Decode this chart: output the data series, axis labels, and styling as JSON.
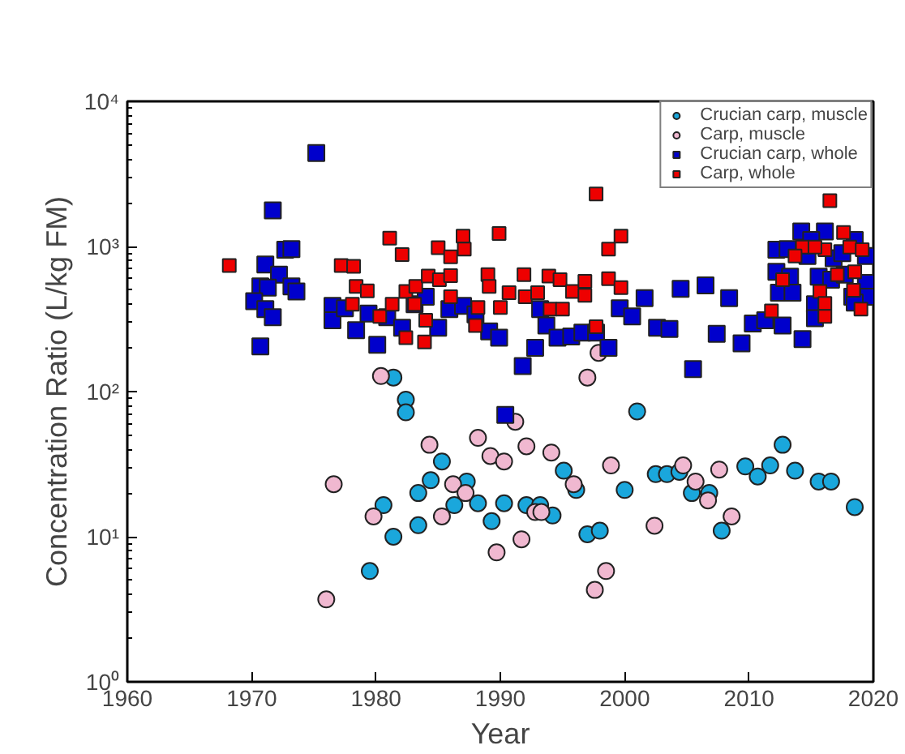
{
  "chart_data": {
    "type": "scatter",
    "xlabel": "Year",
    "ylabel": "Concentration Ratio (L/kg FM)",
    "log": "y",
    "legend": "top right",
    "xlim": [
      1960,
      2020
    ],
    "xticks": [
      1960,
      1970,
      1980,
      1990,
      2000,
      2010,
      2020
    ],
    "ylim": [
      1,
      10000
    ],
    "yticks": [
      {
        "value": 1,
        "label": "10⁰"
      },
      {
        "value": 10,
        "label": "10¹"
      },
      {
        "value": 100,
        "label": "10²"
      },
      {
        "value": 1000,
        "label": "10³"
      },
      {
        "value": 10000,
        "label": "10⁴"
      }
    ],
    "series": [
      {
        "name": "Crucian carp, muscle",
        "color": "#1aa7dc",
        "marker": "circle",
        "x": [
          1981.4,
          1982.4,
          1982.4,
          1985.3,
          1984.4,
          1987.3,
          1983.4,
          1980.6,
          1986.3,
          1988.2,
          1990.3,
          1983.4,
          1989.3,
          1981.4,
          1979.5,
          1992.1,
          1993.2,
          1994.2,
          1995.1,
          1996.1,
          1997.0,
          1998.0,
          2000.0,
          2001.0,
          2002.5,
          2003.4,
          2004.4,
          2005.4,
          2006.8,
          2007.8,
          2009.7,
          2010.7,
          2011.7,
          2012.7,
          2013.7,
          2015.6,
          2016.6,
          2018.5
        ],
        "values": [
          125,
          88,
          72,
          33,
          24.5,
          24,
          20,
          16.5,
          16.5,
          17,
          17,
          12,
          12.8,
          10,
          5.8,
          16.5,
          16.5,
          14,
          28.5,
          21,
          10.4,
          11,
          21,
          73,
          27,
          27,
          28,
          20,
          20,
          11,
          30.5,
          26,
          31,
          43,
          28.5,
          24,
          24,
          16
        ]
      },
      {
        "name": "Carp, muscle",
        "color": "#f0b8d0",
        "marker": "circle",
        "x": [
          1980.4,
          1984.3,
          1976.6,
          1988.2,
          1989.2,
          1990.3,
          1986.2,
          1987.2,
          1979.8,
          1985.3,
          1976.0,
          1989.7,
          1991.2,
          1992.1,
          1994.1,
          1995.9,
          1992.8,
          1993.3,
          1991.7,
          1998.9,
          1998.5,
          1997.6,
          2002.4,
          2004.7,
          2005.7,
          2006.7,
          2007.6,
          2008.6,
          1997.0,
          1997.9
        ],
        "values": [
          128,
          43,
          23,
          48,
          36,
          33,
          23,
          20,
          13.8,
          13.8,
          3.7,
          7.8,
          62,
          42,
          38,
          23,
          14.8,
          14.8,
          9.6,
          31,
          5.8,
          4.3,
          11.9,
          31,
          24,
          17.8,
          29,
          13.8,
          125,
          185
        ]
      },
      {
        "name": "Crucian carp, whole",
        "color": "#0000cc",
        "marker": "square",
        "x": [
          1975.2,
          1971.7,
          1972.7,
          1973.2,
          1971.1,
          1972.2,
          1970.7,
          1971.3,
          1973.2,
          1973.6,
          1970.2,
          1971.1,
          1971.7,
          1970.7,
          1976.5,
          1976.5,
          1977.5,
          1978.4,
          1979.4,
          1980.1,
          1980.9,
          1982.1,
          1983.1,
          1984.0,
          1985.0,
          1985.9,
          1987.0,
          1988.0,
          1989.1,
          1989.9,
          1990.4,
          1993.2,
          1993.7,
          1994.6,
          1995.7,
          1996.6,
          1997.7,
          1998.7,
          1992.8,
          1991.8,
          1999.6,
          2000.6,
          2001.6,
          2002.6,
          2003.6,
          2004.5,
          2005.5,
          2006.5,
          2007.4,
          2008.4,
          2009.4,
          2010.3,
          2011.3,
          2012.7,
          2014.3,
          2014.2,
          2016.1,
          2012.2,
          2013.1,
          2015.0,
          2018.5,
          2019.4,
          2012.2,
          2013.3,
          2012.4,
          2013.5,
          2015.6,
          2016.6,
          2017.7,
          2019.4,
          2019.4,
          2018.3,
          2015.3,
          2015.3,
          2016.8,
          2017.5,
          2014.7,
          2018.5
        ],
        "values": [
          4400,
          1770,
          950,
          960,
          750,
          640,
          530,
          520,
          530,
          490,
          420,
          370,
          325,
          205,
          390,
          310,
          375,
          265,
          345,
          210,
          325,
          275,
          400,
          450,
          275,
          370,
          390,
          340,
          260,
          235,
          69,
          370,
          285,
          235,
          240,
          255,
          255,
          200,
          200,
          150,
          375,
          330,
          440,
          275,
          270,
          510,
          143,
          540,
          250,
          440,
          215,
          295,
          310,
          285,
          230,
          1270,
          1270,
          950,
          960,
          1110,
          1110,
          860,
          670,
          620,
          480,
          480,
          620,
          590,
          640,
          560,
          450,
          450,
          400,
          320,
          830,
          900,
          860,
          410
        ]
      },
      {
        "name": "Carp, whole",
        "color": "#ee0000",
        "marker": "square",
        "x": [
          1968.2,
          1977.2,
          1978.2,
          1978.4,
          1979.3,
          1978.1,
          1981.1,
          1982.1,
          1980.3,
          1981.3,
          1982.4,
          1982.4,
          1983.2,
          1983.1,
          1984.2,
          1984.0,
          1983.9,
          1985.0,
          1985.1,
          1986.0,
          1986.0,
          1986.0,
          1987.0,
          1987.1,
          1988.2,
          1988.0,
          1989.0,
          1989.1,
          1989.9,
          1990.0,
          1990.7,
          1991.9,
          1992.0,
          1993.0,
          1993.9,
          1994.0,
          1995.0,
          1994.8,
          1995.8,
          1996.8,
          1996.8,
          1997.7,
          1997.7,
          1998.7,
          1999.7,
          1998.7,
          1999.7,
          2011.8,
          2016.5,
          2017.6,
          2014.3,
          2013.7,
          2016.1,
          2015.3,
          2018.1,
          2019.1,
          2018.5,
          2012.7,
          2017.1,
          2018.4,
          2015.7,
          2016.1,
          2016.1,
          2019.0
        ],
        "values": [
          740,
          740,
          730,
          530,
          495,
          400,
          1140,
          880,
          330,
          400,
          235,
          490,
          530,
          400,
          625,
          310,
          220,
          980,
          590,
          850,
          630,
          450,
          1180,
          960,
          380,
          285,
          640,
          530,
          1230,
          380,
          480,
          640,
          450,
          480,
          625,
          370,
          370,
          590,
          490,
          575,
          460,
          2300,
          280,
          960,
          1180,
          600,
          520,
          360,
          2070,
          1250,
          990,
          860,
          950,
          990,
          990,
          950,
          670,
          590,
          640,
          500,
          490,
          405,
          330,
          370
        ]
      }
    ]
  }
}
